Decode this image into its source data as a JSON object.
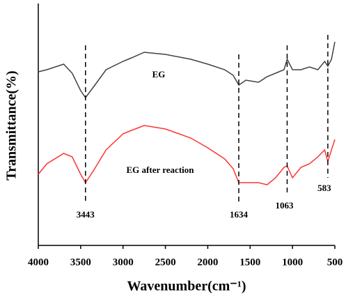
{
  "chart_data": {
    "type": "line",
    "x_label": "Wavenumber(cm⁻¹)",
    "y_label": "Transmittance(%)",
    "x": [
      4000,
      3900,
      3700,
      3600,
      3500,
      3443,
      3350,
      3200,
      3000,
      2900,
      2750,
      2500,
      2200,
      2000,
      1800,
      1700,
      1634,
      1550,
      1400,
      1300,
      1200,
      1100,
      1063,
      1000,
      900,
      800,
      700,
      620,
      583,
      540,
      500
    ],
    "series": [
      {
        "name": "EG",
        "color": "#404040",
        "values": [
          249,
          252,
          260,
          247,
          222,
          212,
          227,
          252,
          264,
          269,
          277,
          274,
          267,
          260,
          252,
          244,
          230,
          237,
          234,
          242,
          247,
          252,
          267,
          252,
          252,
          256,
          252,
          264,
          257,
          267,
          292
        ]
      },
      {
        "name": "EG after reaction",
        "color": "#ff3333",
        "values": [
          102,
          117,
          132,
          127,
          102,
          90,
          107,
          137,
          160,
          165,
          172,
          167,
          154,
          140,
          124,
          110,
          90,
          90,
          90,
          87,
          97,
          112,
          114,
          97,
          112,
          117,
          127,
          137,
          120,
          137,
          152
        ]
      }
    ],
    "xlim": [
      4000,
      500
    ],
    "ylim": [
      0,
      347
    ],
    "xticks": [
      4000,
      3500,
      3000,
      2500,
      2000,
      1500,
      1000,
      500
    ],
    "peaks": [
      {
        "text": "3443",
        "x": 3443
      },
      {
        "text": "1634",
        "x": 1634
      },
      {
        "text": "1063",
        "x": 1063
      },
      {
        "text": "583",
        "x": 583
      }
    ]
  }
}
